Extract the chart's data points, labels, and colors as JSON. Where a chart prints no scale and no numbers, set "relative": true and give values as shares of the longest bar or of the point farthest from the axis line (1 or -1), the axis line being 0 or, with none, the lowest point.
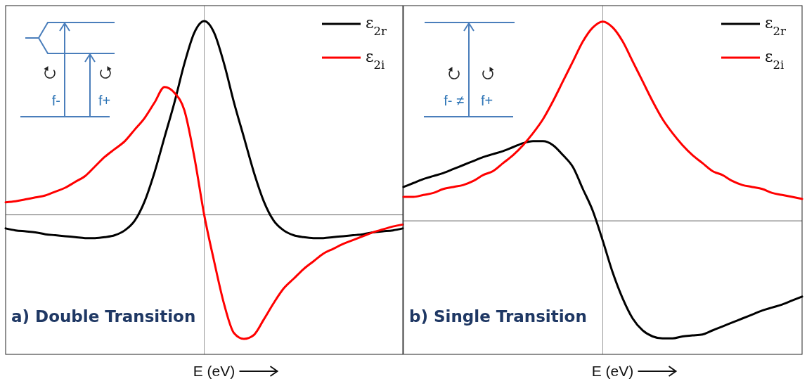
{
  "chart_data": [
    {
      "type": "line",
      "title": "a) Double Transition",
      "xlabel": "E (eV)",
      "relative": true,
      "legend": "top right",
      "annotations": [
        "f-",
        "f+"
      ],
      "categories": [
        null,
        null,
        null,
        null,
        null,
        null,
        null,
        null,
        null,
        null,
        null,
        null,
        null,
        null,
        null,
        null,
        null,
        null,
        null,
        null,
        null,
        null,
        null,
        null,
        null,
        null,
        null,
        null,
        null,
        null,
        null,
        null,
        null,
        null,
        null,
        null,
        null,
        null,
        null,
        null,
        null
      ],
      "series": [
        {
          "name": "ε$_{2r}$",
          "color": "#000000",
          "values": [
            -0.07,
            -0.08,
            -0.085,
            -0.09,
            -0.1,
            -0.105,
            -0.11,
            -0.115,
            -0.12,
            -0.12,
            -0.115,
            -0.105,
            -0.08,
            -0.03,
            0.07,
            0.22,
            0.4,
            0.58,
            0.78,
            0.94,
            1,
            0.94,
            0.78,
            0.58,
            0.4,
            0.22,
            0.07,
            -0.03,
            -0.08,
            -0.105,
            -0.115,
            -0.12,
            -0.12,
            -0.115,
            -0.11,
            -0.105,
            -0.1,
            -0.09,
            -0.085,
            -0.08,
            -0.07
          ]
        },
        {
          "name": "ε$_{2i}$",
          "color": "#ff0000",
          "values": [
            0.065,
            0.07,
            0.08,
            0.09,
            0.1,
            0.12,
            0.14,
            0.17,
            0.2,
            0.25,
            0.3,
            0.34,
            0.38,
            0.44,
            0.5,
            0.58,
            0.66,
            0.63,
            0.54,
            0.3,
            0,
            -0.24,
            -0.46,
            -0.61,
            -0.64,
            -0.62,
            -0.54,
            -0.455,
            -0.38,
            -0.33,
            -0.28,
            -0.24,
            -0.2,
            -0.175,
            -0.15,
            -0.13,
            -0.11,
            -0.09,
            -0.075,
            -0.06,
            -0.05
          ]
        }
      ]
    },
    {
      "type": "line",
      "title": "b) Single Transition",
      "xlabel": "E (eV)",
      "relative": true,
      "legend": "top right",
      "annotations": [
        "f- ≠",
        "f+"
      ],
      "categories": [
        null,
        null,
        null,
        null,
        null,
        null,
        null,
        null,
        null,
        null,
        null,
        null,
        null,
        null,
        null,
        null,
        null,
        null,
        null,
        null,
        null,
        null,
        null,
        null,
        null,
        null,
        null,
        null,
        null,
        null,
        null,
        null,
        null,
        null,
        null,
        null,
        null,
        null,
        null,
        null,
        null
      ],
      "series": [
        {
          "name": "ε$_{2r}$",
          "color": "#000000",
          "values": [
            0.17,
            0.19,
            0.21,
            0.225,
            0.24,
            0.26,
            0.28,
            0.3,
            0.32,
            0.335,
            0.35,
            0.37,
            0.39,
            0.4,
            0.4,
            0.38,
            0.33,
            0.27,
            0.16,
            0.05,
            -0.1,
            -0.26,
            -0.39,
            -0.49,
            -0.55,
            -0.58,
            -0.59,
            -0.59,
            -0.58,
            -0.575,
            -0.57,
            -0.55,
            -0.53,
            -0.51,
            -0.49,
            -0.47,
            -0.45,
            -0.435,
            -0.42,
            -0.4,
            -0.38
          ]
        },
        {
          "name": "ε$_{2i}$",
          "color": "#ff0000",
          "values": [
            0.12,
            0.12,
            0.13,
            0.14,
            0.16,
            0.17,
            0.18,
            0.2,
            0.23,
            0.25,
            0.29,
            0.33,
            0.38,
            0.44,
            0.51,
            0.6,
            0.7,
            0.8,
            0.9,
            0.97,
            1,
            0.97,
            0.9,
            0.8,
            0.7,
            0.6,
            0.51,
            0.44,
            0.38,
            0.33,
            0.29,
            0.25,
            0.23,
            0.2,
            0.18,
            0.17,
            0.16,
            0.14,
            0.13,
            0.12,
            0.11
          ]
        }
      ]
    }
  ]
}
